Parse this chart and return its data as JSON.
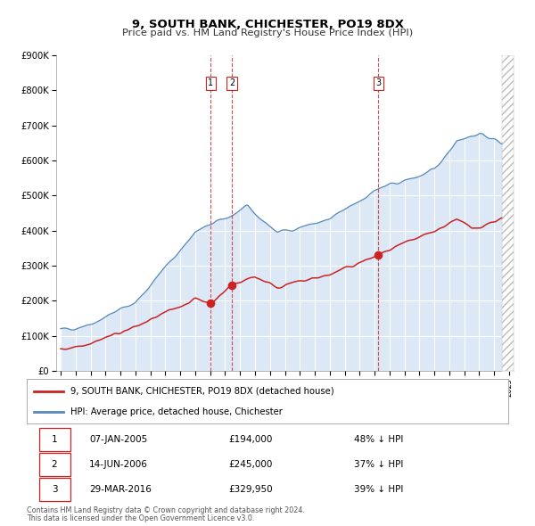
{
  "title": "9, SOUTH BANK, CHICHESTER, PO19 8DX",
  "subtitle": "Price paid vs. HM Land Registry's House Price Index (HPI)",
  "legend_label_red": "9, SOUTH BANK, CHICHESTER, PO19 8DX (detached house)",
  "legend_label_blue": "HPI: Average price, detached house, Chichester",
  "footer_line1": "Contains HM Land Registry data © Crown copyright and database right 2024.",
  "footer_line2": "This data is licensed under the Open Government Licence v3.0.",
  "transactions": [
    {
      "label": "1",
      "date": "07-JAN-2005",
      "price": "£194,000",
      "pct": "48% ↓ HPI",
      "x_year": 2005.03
    },
    {
      "label": "2",
      "date": "14-JUN-2006",
      "price": "£245,000",
      "pct": "37% ↓ HPI",
      "x_year": 2006.45
    },
    {
      "label": "3",
      "date": "29-MAR-2016",
      "price": "£329,950",
      "pct": "39% ↓ HPI",
      "x_year": 2016.24
    }
  ],
  "vline_dates": [
    2005.03,
    2006.45,
    2016.24
  ],
  "transaction_prices": [
    194000,
    245000,
    329950
  ],
  "transaction_dates_num": [
    2005.03,
    2006.45,
    2016.24
  ],
  "ylim": [
    0,
    900000
  ],
  "xlim_start": 1994.7,
  "xlim_end": 2025.3,
  "data_end": 2024.5,
  "background_color": "#dce8f5",
  "plot_bg_color": "#ffffff",
  "grid_color": "#cccccc",
  "red_color": "#cc2222",
  "blue_color": "#5588bb",
  "blue_fill_color": "#dce8f5",
  "vline_color": "#cc2222",
  "title_fontsize": 9.5,
  "subtitle_fontsize": 8.2
}
